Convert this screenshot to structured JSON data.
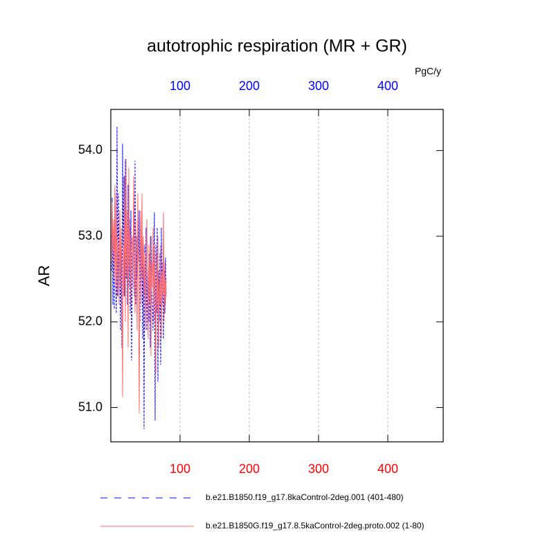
{
  "chart_data": {
    "type": "line",
    "title": "autotrophic respiration (MR + GR)",
    "ylabel": "AR",
    "x2label": "PgC/y",
    "x": [
      1,
      2,
      3,
      4,
      5,
      6,
      7,
      8,
      9,
      10,
      11,
      12,
      13,
      14,
      15,
      16,
      17,
      18,
      19,
      20,
      21,
      22,
      23,
      24,
      25,
      26,
      27,
      28,
      29,
      30,
      31,
      32,
      33,
      34,
      35,
      36,
      37,
      38,
      39,
      40,
      41,
      42,
      43,
      44,
      45,
      46,
      47,
      48,
      49,
      50,
      51,
      52,
      53,
      54,
      55,
      56,
      57,
      58,
      59,
      60,
      61,
      62,
      63,
      64,
      65,
      66,
      67,
      68,
      69,
      70,
      71,
      72,
      73,
      74,
      75,
      76,
      77,
      78,
      79,
      80
    ],
    "series": [
      {
        "name": "b.e21.B1850.f19_g17.8kaControl-2deg.001 (401-480)",
        "color": "#0000ff",
        "line_style": "dashed",
        "values": [
          52.6,
          53.45,
          52.2,
          53.1,
          52.15,
          53.6,
          52.5,
          52.1,
          54.28,
          52.3,
          53.5,
          52.6,
          52.8,
          51.9,
          53.0,
          51.7,
          54.08,
          52.6,
          53.7,
          52.3,
          53.9,
          52.5,
          53.0,
          52.2,
          53.6,
          52.4,
          53.2,
          52.1,
          53.3,
          51.55,
          52.8,
          52.6,
          53.4,
          52.3,
          53.88,
          52.2,
          53.0,
          52.5,
          53.2,
          52.7,
          53.3,
          52.0,
          53.1,
          52.4,
          52.9,
          51.8,
          53.0,
          50.75,
          52.9,
          52.3,
          53.1,
          51.9,
          52.6,
          52.3,
          52.0,
          52.8,
          51.7,
          53.0,
          52.4,
          52.2,
          51.9,
          52.7,
          53.28,
          50.85,
          52.9,
          52.1,
          53.1,
          51.3,
          52.6,
          52.0,
          52.8,
          51.5,
          53.1,
          52.2,
          52.7,
          51.8,
          52.6,
          52.1,
          52.75,
          52.3
        ]
      },
      {
        "name": "b.e21.B1850G.f19_g17.8.5kaControl-2deg.proto.002 (1-80)",
        "color": "#ff6a6a",
        "line_style": "solid",
        "values": [
          52.7,
          53.4,
          52.8,
          53.2,
          52.5,
          53.6,
          52.4,
          53.5,
          52.3,
          53.0,
          52.8,
          52.2,
          53.3,
          52.4,
          53.1,
          52.6,
          51.12,
          52.9,
          52.3,
          53.7,
          52.0,
          53.9,
          52.5,
          53.3,
          51.7,
          53.8,
          52.6,
          53.1,
          52.2,
          52.9,
          53.0,
          52.4,
          53.7,
          52.8,
          52.1,
          53.2,
          52.6,
          51.9,
          53.5,
          52.3,
          50.93,
          52.8,
          53.3,
          52.2,
          53.5,
          52.5,
          53.0,
          52.3,
          52.8,
          51.9,
          52.6,
          53.2,
          52.4,
          51.8,
          52.9,
          52.2,
          53.0,
          51.6,
          52.7,
          52.4,
          53.1,
          52.0,
          52.9,
          52.3,
          51.4,
          52.8,
          52.1,
          53.0,
          51.7,
          52.5,
          52.2,
          52.9,
          51.8,
          52.6,
          52.3,
          53.28,
          52.0,
          52.7,
          52.2,
          52.5
        ]
      }
    ],
    "xlim": [
      0,
      480
    ],
    "xticks": [
      100,
      200,
      300,
      400
    ],
    "xtick_color": "#ff0000",
    "x2lim": [
      0,
      480
    ],
    "x2ticks": [
      100,
      200,
      300,
      400
    ],
    "x2tick_color": "#0000ff",
    "ylim": [
      50.6,
      54.48
    ],
    "yticks": [
      {
        "value": 51,
        "label": "51.0"
      },
      {
        "value": 52,
        "label": "52.0"
      },
      {
        "value": 53,
        "label": "53.0"
      },
      {
        "value": 54,
        "label": "54.0"
      }
    ],
    "grid": true
  }
}
